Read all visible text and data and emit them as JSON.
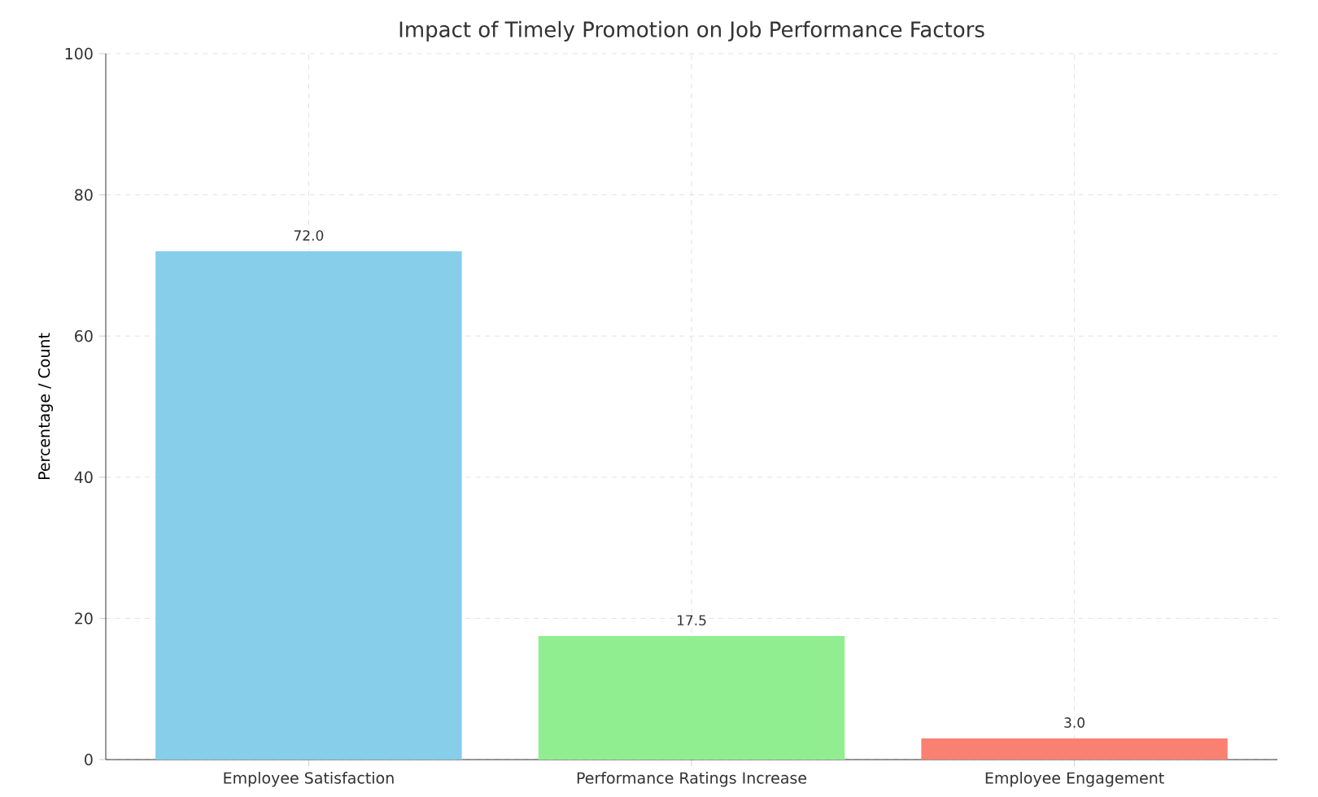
{
  "chart_data": {
    "type": "bar",
    "title": "Impact of Timely Promotion on Job Performance Factors",
    "ylabel": "Percentage / Count",
    "categories": [
      "Employee Satisfaction",
      "Performance Ratings Increase",
      "Employee Engagement"
    ],
    "values": [
      72.0,
      17.5,
      3.0
    ],
    "colors": [
      "#87ceeb",
      "#90ee90",
      "#fa8072"
    ],
    "value_labels": [
      "72.0",
      "17.5",
      "3.0"
    ],
    "ylim": [
      0,
      100
    ],
    "yticks": [
      0,
      20,
      40,
      60,
      80,
      100
    ],
    "grid": true
  }
}
